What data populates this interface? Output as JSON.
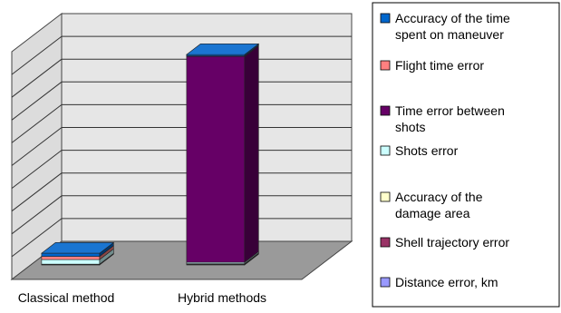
{
  "chart_data": {
    "type": "bar",
    "stacked": true,
    "three_d": true,
    "categories": [
      "Classical method",
      "Hybrid methods"
    ],
    "series": [
      {
        "name": "Distance error, km",
        "color": "#9999FF",
        "values": [
          0.6,
          0.6
        ]
      },
      {
        "name": "Shell trajectory error",
        "color": "#993366",
        "values": [
          0.2,
          0.6
        ]
      },
      {
        "name": "Accuracy of the damage area",
        "color": "#FFFFCC",
        "values": [
          0.1,
          0.2
        ]
      },
      {
        "name": "Shots error",
        "color": "#CCFFFF",
        "values": [
          5,
          1.5
        ]
      },
      {
        "name": "Time error between shots",
        "color": "#660066",
        "values": [
          0,
          226
        ]
      },
      {
        "name": "Flight time error",
        "color": "#FF8080",
        "values": [
          3.5,
          0.6
        ]
      },
      {
        "name": "Accuracy of the time spent on maneuver",
        "color": "#0066CC",
        "values": [
          3.5,
          1.5
        ]
      }
    ],
    "legend_order": [
      "Accuracy of the time spent on maneuver",
      "Flight time error",
      "Time error between shots",
      "Shots error",
      "Accuracy of the damage area",
      "Shell trajectory error",
      "Distance error, km"
    ],
    "ylim": [
      0,
      250
    ],
    "grid": true,
    "legend_position": "right",
    "legend_lines": {
      "Accuracy of the time spent on maneuver": [
        "Accuracy of the time",
        "spent on maneuver"
      ],
      "Flight time error": [
        "Flight time error"
      ],
      "Time error between shots": [
        "Time error between",
        "shots"
      ],
      "Shots error": [
        "Shots error"
      ],
      "Accuracy of the damage area": [
        "Accuracy of the",
        "damage area"
      ],
      "Shell trajectory error": [
        "Shell trajectory error"
      ],
      "Distance error, km": [
        "Distance error, km"
      ]
    }
  }
}
